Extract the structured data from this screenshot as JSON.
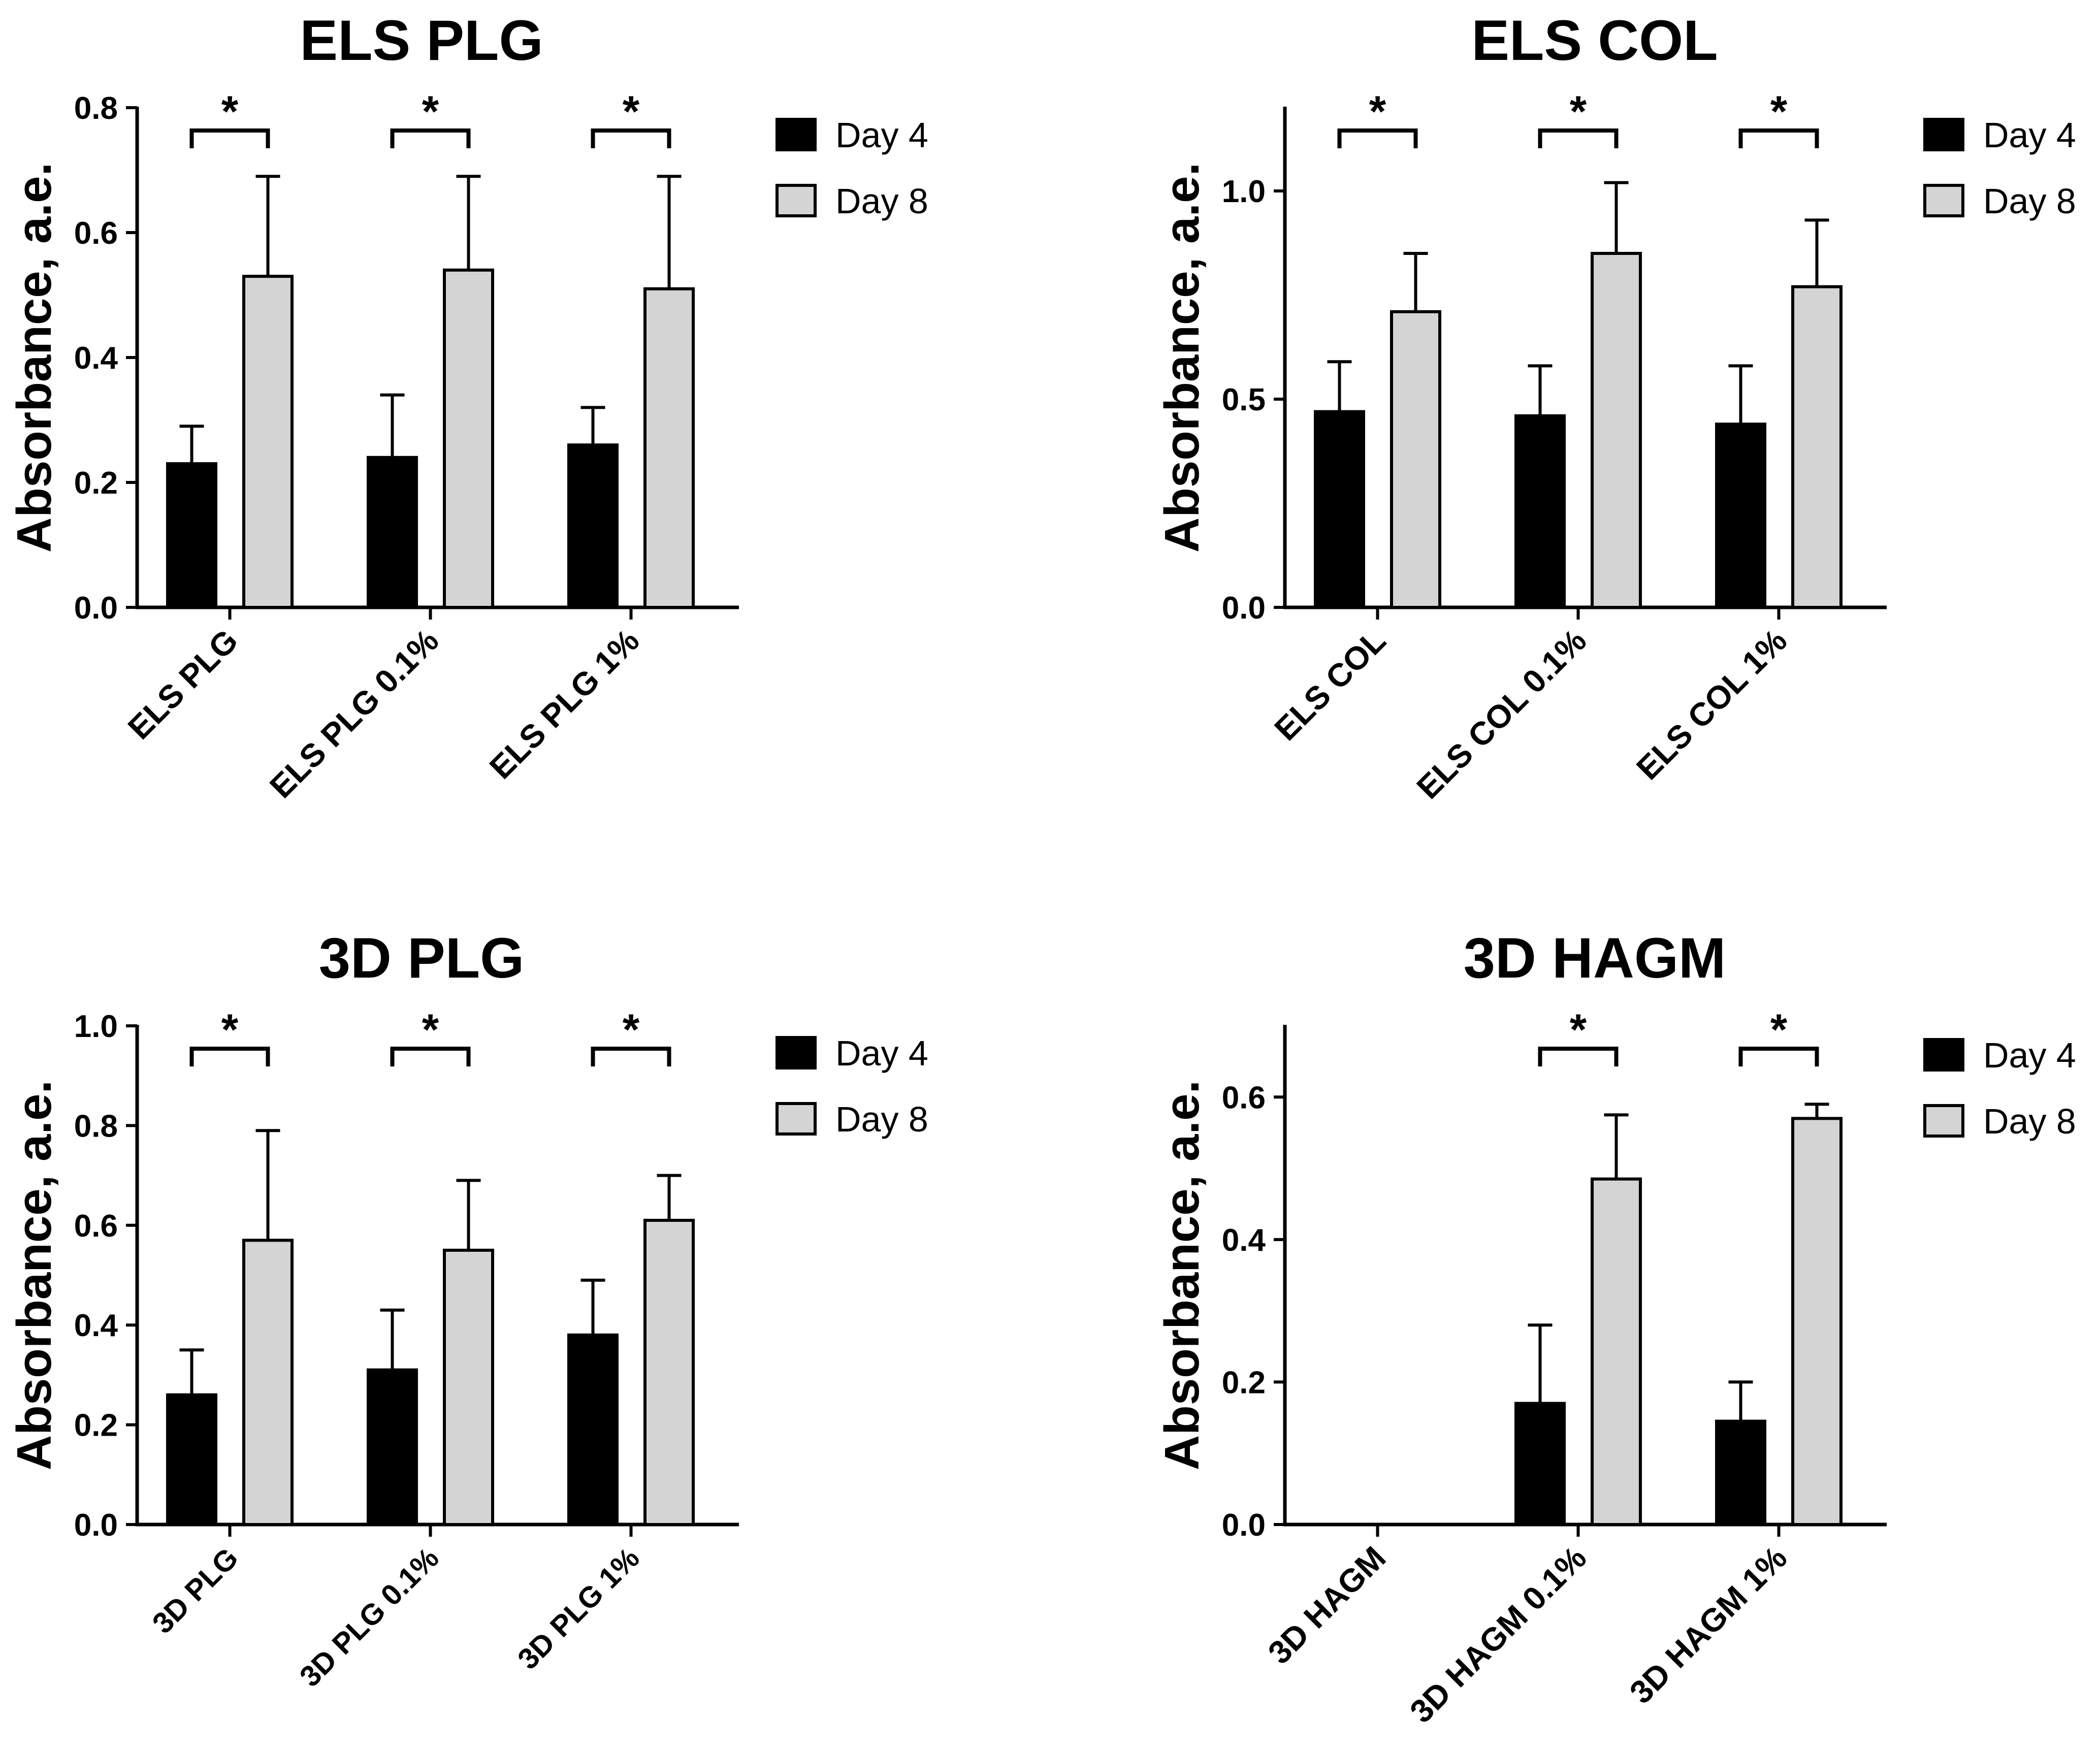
{
  "chart_data": [
    {
      "type": "bar",
      "title": "ELS PLG",
      "ylabel": "Absorbance, a.e.",
      "xlabel": "",
      "ylim": [
        0,
        0.8
      ],
      "yticks": [
        0.0,
        0.2,
        0.4,
        0.6,
        0.8
      ],
      "ytick_labels": [
        "0.0",
        "0.2",
        "0.4",
        "0.6",
        "0.8"
      ],
      "categories": [
        "ELS PLG",
        "ELS PLG 0.1%",
        "ELS PLG 1%"
      ],
      "series": [
        {
          "name": "Day 4",
          "color": "#000000",
          "values": [
            0.23,
            0.24,
            0.26
          ],
          "errors": [
            0.06,
            0.1,
            0.06
          ]
        },
        {
          "name": "Day 8",
          "color": "#d4d4d4",
          "values": [
            0.53,
            0.54,
            0.51
          ],
          "errors": [
            0.16,
            0.15,
            0.18
          ]
        }
      ],
      "significance": [
        {
          "category": 0,
          "label": "*"
        },
        {
          "category": 1,
          "label": "*"
        },
        {
          "category": 2,
          "label": "*"
        }
      ],
      "legend": "top-right"
    },
    {
      "type": "bar",
      "title": "ELS COL",
      "ylabel": "Absorbance, a.e.",
      "xlabel": "",
      "ylim": [
        0,
        1.2
      ],
      "yticks": [
        0.0,
        0.5,
        1.0
      ],
      "ytick_labels": [
        "0.0",
        "0.5",
        "1.0"
      ],
      "categories": [
        "ELS COL",
        "ELS COL 0.1%",
        "ELS COL 1%"
      ],
      "series": [
        {
          "name": "Day 4",
          "color": "#000000",
          "values": [
            0.47,
            0.46,
            0.44
          ],
          "errors": [
            0.12,
            0.12,
            0.14
          ]
        },
        {
          "name": "Day 8",
          "color": "#d4d4d4",
          "values": [
            0.71,
            0.85,
            0.77
          ],
          "errors": [
            0.14,
            0.17,
            0.16
          ]
        }
      ],
      "significance": [
        {
          "category": 0,
          "label": "*"
        },
        {
          "category": 1,
          "label": "*"
        },
        {
          "category": 2,
          "label": "*"
        }
      ],
      "legend": "top-right"
    },
    {
      "type": "bar",
      "title": "3D PLG",
      "ylabel": "Absorbance, a.e.",
      "xlabel": "",
      "ylim": [
        0,
        1.0
      ],
      "yticks": [
        0.0,
        0.2,
        0.4,
        0.6,
        0.8,
        1.0
      ],
      "ytick_labels": [
        "0.0",
        "0.2",
        "0.4",
        "0.6",
        "0.8",
        "1.0"
      ],
      "categories": [
        "3D PLG",
        "3D PLG 0.1%",
        "3D PLG 1%"
      ],
      "series": [
        {
          "name": "Day 4",
          "color": "#000000",
          "values": [
            0.26,
            0.31,
            0.38
          ],
          "errors": [
            0.09,
            0.12,
            0.11
          ]
        },
        {
          "name": "Day 8",
          "color": "#d4d4d4",
          "values": [
            0.57,
            0.55,
            0.61
          ],
          "errors": [
            0.22,
            0.14,
            0.09
          ]
        }
      ],
      "significance": [
        {
          "category": 0,
          "label": "*"
        },
        {
          "category": 1,
          "label": "*"
        },
        {
          "category": 2,
          "label": "*"
        }
      ],
      "legend": "top-right"
    },
    {
      "type": "bar",
      "title": "3D HAGM",
      "ylabel": "Absorbance, a.e.",
      "xlabel": "",
      "ylim": [
        0,
        0.7
      ],
      "yticks": [
        0.0,
        0.2,
        0.4,
        0.6
      ],
      "ytick_labels": [
        "0.0",
        "0.2",
        "0.4",
        "0.6"
      ],
      "categories": [
        "3D HAGM",
        "3D HAGM 0.1%",
        "3D HAGM 1%"
      ],
      "series": [
        {
          "name": "Day 4",
          "color": "#000000",
          "values": [
            0,
            0.17,
            0.145
          ],
          "errors": [
            0,
            0.11,
            0.055
          ]
        },
        {
          "name": "Day 8",
          "color": "#d4d4d4",
          "values": [
            0,
            0.485,
            0.57
          ],
          "errors": [
            0,
            0.09,
            0.02
          ]
        }
      ],
      "significance": [
        {
          "category": 1,
          "label": "*"
        },
        {
          "category": 2,
          "label": "*"
        }
      ],
      "legend": "top-right"
    }
  ]
}
